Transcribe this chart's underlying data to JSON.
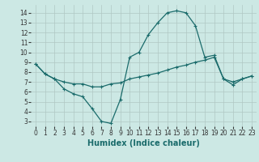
{
  "title": "",
  "xlabel": "Humidex (Indice chaleur)",
  "ylabel": "",
  "bg_color": "#cce8e4",
  "grid_color": "#b0c8c4",
  "line_color": "#1a6b6b",
  "x": [
    0,
    1,
    2,
    3,
    4,
    5,
    6,
    7,
    8,
    9,
    10,
    11,
    12,
    13,
    14,
    15,
    16,
    17,
    18,
    19,
    20,
    21,
    22,
    23
  ],
  "line1": [
    8.8,
    7.8,
    7.3,
    6.3,
    5.8,
    5.5,
    4.3,
    3.0,
    2.8,
    5.2,
    9.5,
    10.0,
    11.8,
    13.0,
    14.0,
    14.2,
    14.0,
    12.7,
    9.5,
    9.7,
    7.3,
    6.7,
    7.3,
    7.6
  ],
  "line2": [
    8.8,
    7.8,
    7.3,
    7.0,
    6.8,
    6.8,
    6.5,
    6.5,
    6.8,
    6.9,
    7.3,
    7.5,
    7.7,
    7.9,
    8.2,
    8.5,
    8.7,
    9.0,
    9.2,
    9.5,
    7.3,
    7.0,
    7.3,
    7.6
  ],
  "ylim": [
    2.5,
    14.8
  ],
  "xlim": [
    -0.5,
    23.5
  ],
  "yticks": [
    3,
    4,
    5,
    6,
    7,
    8,
    9,
    10,
    11,
    12,
    13,
    14
  ],
  "xticks": [
    0,
    1,
    2,
    3,
    4,
    5,
    6,
    7,
    8,
    9,
    10,
    11,
    12,
    13,
    14,
    15,
    16,
    17,
    18,
    19,
    20,
    21,
    22,
    23
  ],
  "tick_fontsize": 5.5,
  "xlabel_fontsize": 7.0
}
